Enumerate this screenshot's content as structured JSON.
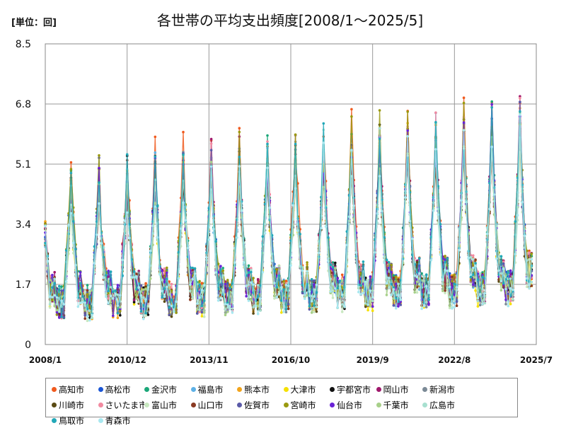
{
  "chart_data": {
    "type": "line",
    "title": "各世帯の平均支出頻度[2008/1～2025/5]",
    "unit_label": "[単位：回]",
    "xlabel": "",
    "ylabel": "",
    "ylim": [
      0,
      8.5
    ],
    "y_ticks": [
      "0",
      "1.7",
      "3.4",
      "5.1",
      "6.8",
      "8.5"
    ],
    "x_ticks": [
      "2008/1",
      "2010/12",
      "2013/11",
      "2016/10",
      "2019/9",
      "2022/8",
      "2025/7"
    ],
    "x_range": [
      "2008-01",
      "2025-07"
    ],
    "grid": true,
    "legend_position": "bottom",
    "pattern_note": "",
    "series": [
      {
        "name": "高知市",
        "color": "#f05a1e",
        "peak_scale": 1.05,
        "phase": 0.2
      },
      {
        "name": "高松市",
        "color": "#1a56d6",
        "peak_scale": 0.98,
        "phase": 0.5
      },
      {
        "name": "金沢市",
        "color": "#1ba779",
        "peak_scale": 1.0,
        "phase": 0.8
      },
      {
        "name": "福島市",
        "color": "#5eb1e6",
        "peak_scale": 0.97,
        "phase": 1.1
      },
      {
        "name": "熊本市",
        "color": "#f2a41c",
        "peak_scale": 0.95,
        "phase": 1.4
      },
      {
        "name": "大津市",
        "color": "#f5e000",
        "peak_scale": 0.92,
        "phase": 1.7
      },
      {
        "name": "宇都宮市",
        "color": "#111111",
        "peak_scale": 0.96,
        "phase": 2.0
      },
      {
        "name": "岡山市",
        "color": "#a0186c",
        "peak_scale": 1.0,
        "phase": 2.3
      },
      {
        "name": "新潟市",
        "color": "#7b8a96",
        "peak_scale": 0.94,
        "phase": 2.6
      },
      {
        "name": "川崎市",
        "color": "#5a4a14",
        "peak_scale": 0.93,
        "phase": 2.9
      },
      {
        "name": "さいたま市",
        "color": "#f28aa0",
        "peak_scale": 0.99,
        "phase": 3.2
      },
      {
        "name": "富山市",
        "color": "#c8e8c0",
        "peak_scale": 0.9,
        "phase": 3.5
      },
      {
        "name": "山口市",
        "color": "#8a3a22",
        "peak_scale": 0.95,
        "phase": 3.8
      },
      {
        "name": "佐賀市",
        "color": "#5a5aa8",
        "peak_scale": 0.97,
        "phase": 4.1
      },
      {
        "name": "宮崎市",
        "color": "#9a9a10",
        "peak_scale": 1.02,
        "phase": 4.4
      },
      {
        "name": "仙台市",
        "color": "#6a22d6",
        "peak_scale": 0.98,
        "phase": 4.7
      },
      {
        "name": "千葉市",
        "color": "#a8d08a",
        "peak_scale": 0.92,
        "phase": 5.0
      },
      {
        "name": "広島市",
        "color": "#a8e0d0",
        "peak_scale": 0.96,
        "phase": 5.3
      },
      {
        "name": "鳥取市",
        "color": "#22a8b8",
        "peak_scale": 1.0,
        "phase": 5.6
      },
      {
        "name": "青森市",
        "color": "#a8e8f0",
        "peak_scale": 0.91,
        "phase": 5.9
      }
    ]
  }
}
